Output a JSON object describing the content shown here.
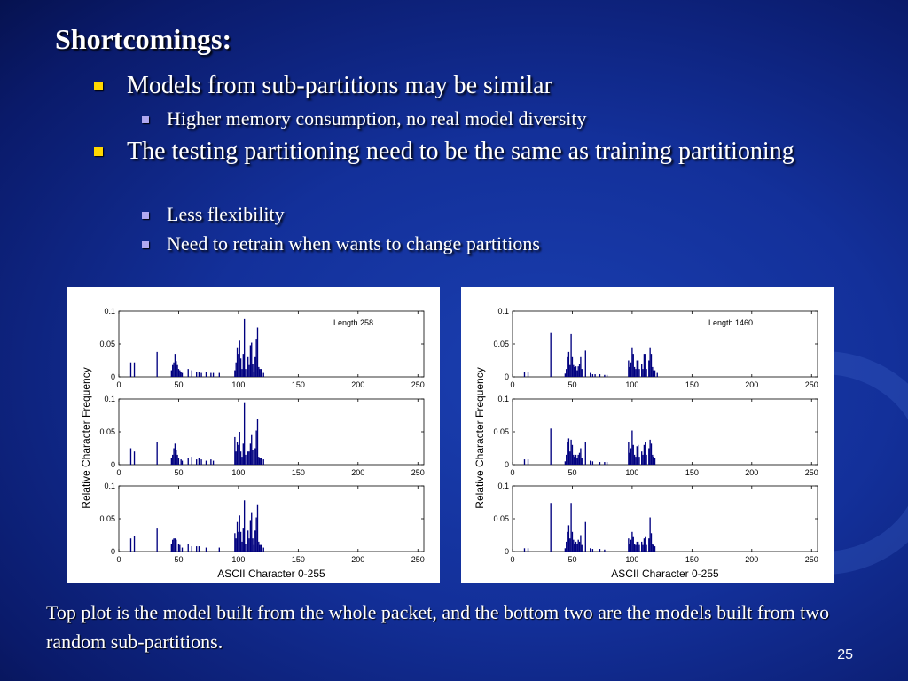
{
  "slide": {
    "title": "Shortcomings:",
    "bullets": [
      {
        "text": "Models from sub-partitions may be similar",
        "sub": [
          "Higher memory consumption, no real model diversity"
        ]
      },
      {
        "text": "The testing partitioning need to be the same as training partitioning",
        "sub": [
          "Less flexibility",
          "Need to retrain when wants to change partitions"
        ]
      }
    ],
    "caption": "Top plot is the model built from the whole packet, and the bottom two are the models built from two random sub-partitions.",
    "page_number": "25"
  },
  "chart_data": [
    {
      "type": "bar",
      "ylabel": "Relative Character Frequency",
      "xlabel": "ASCII Character 0-255",
      "annotation": "Length 258",
      "xlim": [
        0,
        255
      ],
      "ylim": [
        0,
        0.1
      ],
      "xticks": [
        "0",
        "50",
        "100",
        "150",
        "200",
        "250"
      ],
      "yticks": [
        "0",
        "0.05",
        "0.1"
      ],
      "bar_color": "#00007f",
      "subplots": [
        {
          "points": [
            [
              10,
              0.022
            ],
            [
              13,
              0.022
            ],
            [
              32,
              0.038
            ],
            [
              44,
              0.01
            ],
            [
              45,
              0.018
            ],
            [
              46,
              0.022
            ],
            [
              47,
              0.035
            ],
            [
              48,
              0.024
            ],
            [
              49,
              0.018
            ],
            [
              50,
              0.012
            ],
            [
              51,
              0.01
            ],
            [
              52,
              0.008
            ],
            [
              53,
              0.006
            ],
            [
              58,
              0.012
            ],
            [
              61,
              0.01
            ],
            [
              65,
              0.008
            ],
            [
              67,
              0.008
            ],
            [
              69,
              0.006
            ],
            [
              73,
              0.008
            ],
            [
              77,
              0.006
            ],
            [
              79,
              0.006
            ],
            [
              84,
              0.006
            ],
            [
              97,
              0.01
            ],
            [
              98,
              0.022
            ],
            [
              99,
              0.045
            ],
            [
              100,
              0.035
            ],
            [
              101,
              0.055
            ],
            [
              102,
              0.028
            ],
            [
              103,
              0.012
            ],
            [
              104,
              0.035
            ],
            [
              105,
              0.088
            ],
            [
              106,
              0.012
            ],
            [
              108,
              0.03
            ],
            [
              109,
              0.018
            ],
            [
              110,
              0.048
            ],
            [
              111,
              0.052
            ],
            [
              112,
              0.02
            ],
            [
              113,
              0.008
            ],
            [
              114,
              0.03
            ],
            [
              115,
              0.058
            ],
            [
              116,
              0.075
            ],
            [
              117,
              0.015
            ],
            [
              118,
              0.012
            ],
            [
              119,
              0.012
            ],
            [
              121,
              0.006
            ]
          ]
        },
        {
          "points": [
            [
              10,
              0.025
            ],
            [
              13,
              0.02
            ],
            [
              32,
              0.035
            ],
            [
              44,
              0.01
            ],
            [
              45,
              0.015
            ],
            [
              46,
              0.025
            ],
            [
              47,
              0.032
            ],
            [
              48,
              0.022
            ],
            [
              49,
              0.015
            ],
            [
              50,
              0.01
            ],
            [
              52,
              0.008
            ],
            [
              53,
              0.006
            ],
            [
              58,
              0.01
            ],
            [
              61,
              0.012
            ],
            [
              65,
              0.008
            ],
            [
              67,
              0.01
            ],
            [
              69,
              0.008
            ],
            [
              73,
              0.006
            ],
            [
              77,
              0.008
            ],
            [
              79,
              0.006
            ],
            [
              97,
              0.042
            ],
            [
              98,
              0.02
            ],
            [
              99,
              0.035
            ],
            [
              100,
              0.03
            ],
            [
              101,
              0.05
            ],
            [
              102,
              0.02
            ],
            [
              103,
              0.012
            ],
            [
              104,
              0.032
            ],
            [
              105,
              0.095
            ],
            [
              106,
              0.015
            ],
            [
              108,
              0.02
            ],
            [
              109,
              0.02
            ],
            [
              110,
              0.032
            ],
            [
              111,
              0.045
            ],
            [
              112,
              0.022
            ],
            [
              114,
              0.025
            ],
            [
              115,
              0.052
            ],
            [
              116,
              0.07
            ],
            [
              117,
              0.012
            ],
            [
              118,
              0.01
            ],
            [
              119,
              0.01
            ],
            [
              121,
              0.008
            ]
          ]
        },
        {
          "points": [
            [
              10,
              0.02
            ],
            [
              13,
              0.024
            ],
            [
              32,
              0.035
            ],
            [
              44,
              0.012
            ],
            [
              45,
              0.018
            ],
            [
              46,
              0.02
            ],
            [
              47,
              0.02
            ],
            [
              48,
              0.018
            ],
            [
              50,
              0.012
            ],
            [
              51,
              0.01
            ],
            [
              53,
              0.006
            ],
            [
              58,
              0.012
            ],
            [
              61,
              0.008
            ],
            [
              65,
              0.008
            ],
            [
              67,
              0.008
            ],
            [
              73,
              0.006
            ],
            [
              84,
              0.006
            ],
            [
              97,
              0.028
            ],
            [
              98,
              0.02
            ],
            [
              99,
              0.045
            ],
            [
              100,
              0.03
            ],
            [
              101,
              0.055
            ],
            [
              102,
              0.03
            ],
            [
              103,
              0.015
            ],
            [
              104,
              0.035
            ],
            [
              105,
              0.078
            ],
            [
              106,
              0.012
            ],
            [
              108,
              0.032
            ],
            [
              109,
              0.02
            ],
            [
              110,
              0.048
            ],
            [
              111,
              0.06
            ],
            [
              112,
              0.02
            ],
            [
              113,
              0.01
            ],
            [
              114,
              0.032
            ],
            [
              115,
              0.052
            ],
            [
              116,
              0.072
            ],
            [
              117,
              0.015
            ],
            [
              118,
              0.01
            ],
            [
              119,
              0.01
            ],
            [
              121,
              0.006
            ]
          ]
        }
      ]
    },
    {
      "type": "bar",
      "ylabel": "Relative Character Frequency",
      "xlabel": "ASCII Character 0-255",
      "annotation": "Length 1460",
      "xlim": [
        0,
        255
      ],
      "ylim": [
        0,
        0.1
      ],
      "xticks": [
        "0",
        "50",
        "100",
        "150",
        "200",
        "250"
      ],
      "yticks": [
        "0",
        "0.05",
        "0.1"
      ],
      "bar_color": "#00007f",
      "subplots": [
        {
          "points": [
            [
              10,
              0.007
            ],
            [
              13,
              0.007
            ],
            [
              32,
              0.068
            ],
            [
              44,
              0.005
            ],
            [
              45,
              0.012
            ],
            [
              46,
              0.03
            ],
            [
              47,
              0.038
            ],
            [
              48,
              0.018
            ],
            [
              49,
              0.065
            ],
            [
              50,
              0.03
            ],
            [
              51,
              0.018
            ],
            [
              52,
              0.015
            ],
            [
              53,
              0.016
            ],
            [
              54,
              0.01
            ],
            [
              55,
              0.016
            ],
            [
              56,
              0.02
            ],
            [
              57,
              0.03
            ],
            [
              58,
              0.012
            ],
            [
              61,
              0.04
            ],
            [
              65,
              0.006
            ],
            [
              67,
              0.004
            ],
            [
              69,
              0.004
            ],
            [
              73,
              0.004
            ],
            [
              77,
              0.003
            ],
            [
              79,
              0.003
            ],
            [
              97,
              0.025
            ],
            [
              98,
              0.015
            ],
            [
              99,
              0.022
            ],
            [
              100,
              0.045
            ],
            [
              101,
              0.035
            ],
            [
              102,
              0.015
            ],
            [
              103,
              0.012
            ],
            [
              104,
              0.025
            ],
            [
              105,
              0.025
            ],
            [
              106,
              0.012
            ],
            [
              108,
              0.02
            ],
            [
              109,
              0.012
            ],
            [
              110,
              0.035
            ],
            [
              111,
              0.035
            ],
            [
              112,
              0.012
            ],
            [
              114,
              0.025
            ],
            [
              115,
              0.045
            ],
            [
              116,
              0.035
            ],
            [
              117,
              0.015
            ],
            [
              118,
              0.01
            ],
            [
              119,
              0.01
            ],
            [
              121,
              0.006
            ]
          ]
        },
        {
          "points": [
            [
              10,
              0.008
            ],
            [
              13,
              0.008
            ],
            [
              32,
              0.055
            ],
            [
              44,
              0.005
            ],
            [
              45,
              0.015
            ],
            [
              46,
              0.035
            ],
            [
              47,
              0.04
            ],
            [
              48,
              0.02
            ],
            [
              49,
              0.038
            ],
            [
              50,
              0.03
            ],
            [
              51,
              0.015
            ],
            [
              52,
              0.012
            ],
            [
              53,
              0.015
            ],
            [
              54,
              0.01
            ],
            [
              55,
              0.015
            ],
            [
              56,
              0.018
            ],
            [
              57,
              0.025
            ],
            [
              58,
              0.01
            ],
            [
              61,
              0.035
            ],
            [
              65,
              0.006
            ],
            [
              67,
              0.005
            ],
            [
              73,
              0.004
            ],
            [
              77,
              0.004
            ],
            [
              79,
              0.004
            ],
            [
              97,
              0.035
            ],
            [
              98,
              0.018
            ],
            [
              99,
              0.025
            ],
            [
              100,
              0.052
            ],
            [
              101,
              0.03
            ],
            [
              102,
              0.015
            ],
            [
              103,
              0.012
            ],
            [
              104,
              0.028
            ],
            [
              105,
              0.03
            ],
            [
              106,
              0.012
            ],
            [
              108,
              0.02
            ],
            [
              109,
              0.015
            ],
            [
              110,
              0.03
            ],
            [
              111,
              0.035
            ],
            [
              112,
              0.015
            ],
            [
              114,
              0.025
            ],
            [
              115,
              0.038
            ],
            [
              116,
              0.032
            ],
            [
              117,
              0.015
            ],
            [
              118,
              0.012
            ],
            [
              119,
              0.01
            ]
          ]
        },
        {
          "points": [
            [
              10,
              0.005
            ],
            [
              13,
              0.005
            ],
            [
              32,
              0.074
            ],
            [
              44,
              0.005
            ],
            [
              45,
              0.015
            ],
            [
              46,
              0.03
            ],
            [
              47,
              0.04
            ],
            [
              48,
              0.02
            ],
            [
              49,
              0.074
            ],
            [
              50,
              0.03
            ],
            [
              51,
              0.018
            ],
            [
              52,
              0.012
            ],
            [
              53,
              0.015
            ],
            [
              54,
              0.012
            ],
            [
              55,
              0.018
            ],
            [
              56,
              0.015
            ],
            [
              57,
              0.025
            ],
            [
              58,
              0.01
            ],
            [
              61,
              0.045
            ],
            [
              65,
              0.005
            ],
            [
              67,
              0.004
            ],
            [
              73,
              0.004
            ],
            [
              77,
              0.003
            ],
            [
              97,
              0.02
            ],
            [
              98,
              0.012
            ],
            [
              99,
              0.018
            ],
            [
              100,
              0.03
            ],
            [
              101,
              0.022
            ],
            [
              102,
              0.012
            ],
            [
              103,
              0.01
            ],
            [
              104,
              0.015
            ],
            [
              105,
              0.015
            ],
            [
              106,
              0.01
            ],
            [
              108,
              0.015
            ],
            [
              109,
              0.01
            ],
            [
              110,
              0.02
            ],
            [
              111,
              0.022
            ],
            [
              112,
              0.01
            ],
            [
              114,
              0.02
            ],
            [
              115,
              0.052
            ],
            [
              116,
              0.028
            ],
            [
              117,
              0.012
            ],
            [
              118,
              0.01
            ],
            [
              119,
              0.008
            ]
          ]
        }
      ]
    }
  ]
}
